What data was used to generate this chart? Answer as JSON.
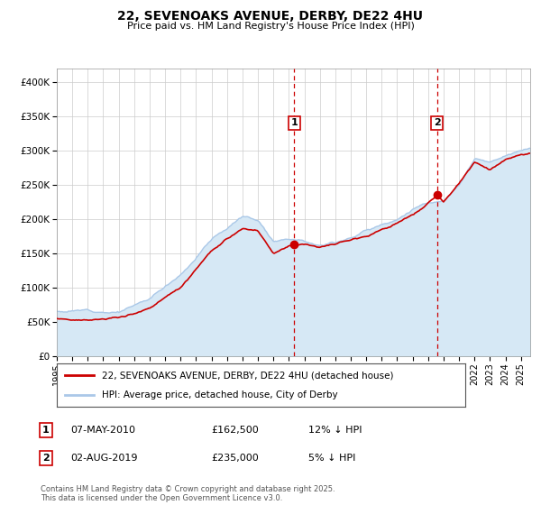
{
  "title": "22, SEVENOAKS AVENUE, DERBY, DE22 4HU",
  "subtitle": "Price paid vs. HM Land Registry's House Price Index (HPI)",
  "ylim": [
    0,
    420000
  ],
  "yticks": [
    0,
    50000,
    100000,
    150000,
    200000,
    250000,
    300000,
    350000,
    400000
  ],
  "ytick_labels": [
    "£0",
    "£50K",
    "£100K",
    "£150K",
    "£200K",
    "£250K",
    "£300K",
    "£350K",
    "£400K"
  ],
  "xlim_start": 1995.0,
  "xlim_end": 2025.6,
  "hpi_color": "#aac8e8",
  "hpi_fill_color": "#d6e8f5",
  "price_color": "#cc0000",
  "marker_color": "#cc0000",
  "vline_color": "#cc0000",
  "background_color": "#ffffff",
  "grid_color": "#cccccc",
  "transaction1_x": 2010.35,
  "transaction1_y": 162500,
  "transaction2_x": 2019.58,
  "transaction2_y": 235000,
  "legend_label1": "22, SEVENOAKS AVENUE, DERBY, DE22 4HU (detached house)",
  "legend_label2": "HPI: Average price, detached house, City of Derby",
  "annotation1_label": "1",
  "annotation1_date": "07-MAY-2010",
  "annotation1_price": "£162,500",
  "annotation1_hpi": "12% ↓ HPI",
  "annotation2_label": "2",
  "annotation2_date": "02-AUG-2019",
  "annotation2_price": "£235,000",
  "annotation2_hpi": "5% ↓ HPI",
  "footer": "Contains HM Land Registry data © Crown copyright and database right 2025.\nThis data is licensed under the Open Government Licence v3.0."
}
